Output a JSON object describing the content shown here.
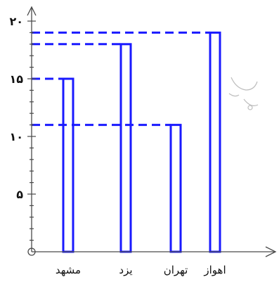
{
  "chart_data": {
    "type": "bar",
    "categories": [
      "مشهد",
      "یزد",
      "تهران",
      "اهواز"
    ],
    "values": [
      15,
      18,
      11,
      19
    ],
    "ylim": [
      0,
      20
    ],
    "yticks": [
      {
        "value": 0,
        "label": "0"
      },
      {
        "value": 5,
        "label": "۵"
      },
      {
        "value": 10,
        "label": "۱۰"
      },
      {
        "value": 15,
        "label": "۱۵"
      },
      {
        "value": 20,
        "label": "۲۰"
      }
    ],
    "minor_tick_step": 1,
    "guide_lines": true,
    "bar_color": "#1a1aff",
    "axis_color": "#4a4a4a",
    "title": "",
    "xlabel": "",
    "ylabel": ""
  }
}
